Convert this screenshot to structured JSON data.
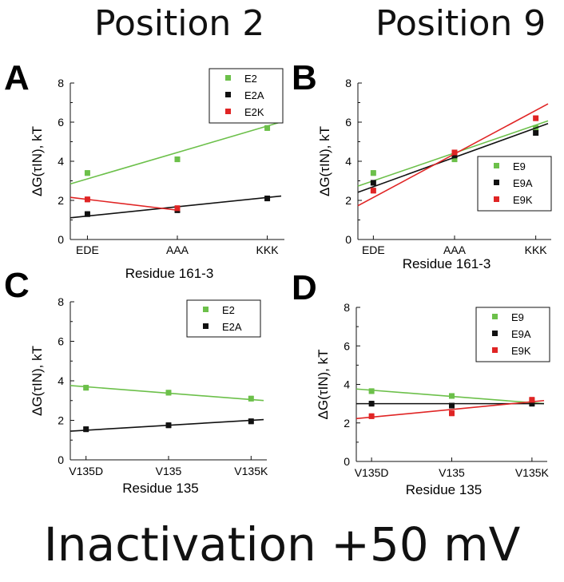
{
  "headings": {
    "left": "Position 2",
    "right": "Position 9"
  },
  "footer": "Inactivation +50 mV",
  "colors": {
    "green": "#6cc04a",
    "black": "#111111",
    "red": "#e02424"
  },
  "chart_data": [
    {
      "panel": "A",
      "type": "scatter",
      "categories": [
        "EDE",
        "AAA",
        "KKK"
      ],
      "xlabel": "Residue 161-3",
      "ylabel": "ΔG(τIN), kT",
      "ylim": [
        0,
        8
      ],
      "yticks": [
        0,
        2,
        4,
        6,
        8
      ],
      "legend": "top-right",
      "series": [
        {
          "name": "E2",
          "color": "green",
          "values": [
            3.4,
            4.1,
            5.7
          ],
          "fit": [
            3.1,
            5.8
          ]
        },
        {
          "name": "E2A",
          "color": "black",
          "values": [
            1.3,
            1.5,
            2.1
          ],
          "fit": [
            1.2,
            2.15
          ]
        },
        {
          "name": "E2K",
          "color": "red",
          "values": [
            2.05,
            1.6,
            null
          ],
          "fit": [
            2.05,
            1.5
          ],
          "fit_x": [
            0,
            1
          ]
        }
      ]
    },
    {
      "panel": "B",
      "type": "scatter",
      "categories": [
        "EDE",
        "AAA",
        "KKK"
      ],
      "xlabel": "Residue 161-3",
      "ylabel": "ΔG(τIN), kT",
      "ylim": [
        0,
        8
      ],
      "yticks": [
        0,
        2,
        4,
        6,
        8
      ],
      "legend": "bottom-right",
      "series": [
        {
          "name": "E9",
          "color": "green",
          "values": [
            3.4,
            4.1,
            5.7
          ],
          "fit": [
            3.0,
            5.85
          ]
        },
        {
          "name": "E9A",
          "color": "black",
          "values": [
            2.9,
            4.3,
            5.45
          ],
          "fit": [
            2.7,
            5.7
          ]
        },
        {
          "name": "E9K",
          "color": "red",
          "values": [
            2.5,
            4.45,
            6.2
          ],
          "fit": [
            2.15,
            6.6
          ]
        }
      ]
    },
    {
      "panel": "C",
      "type": "scatter",
      "categories": [
        "V135D",
        "V135",
        "V135K"
      ],
      "xlabel": "Residue 135",
      "ylabel": "ΔG(τIN), kT",
      "ylim": [
        0,
        8
      ],
      "yticks": [
        0,
        2,
        4,
        6,
        8
      ],
      "legend": "top-right",
      "series": [
        {
          "name": "E2",
          "color": "green",
          "values": [
            3.65,
            3.4,
            3.1
          ],
          "fit": [
            3.7,
            3.05
          ]
        },
        {
          "name": "E2A",
          "color": "black",
          "values": [
            1.55,
            1.75,
            1.95
          ],
          "fit": [
            1.5,
            2.0
          ]
        }
      ]
    },
    {
      "panel": "D",
      "type": "scatter",
      "categories": [
        "V135D",
        "V135",
        "V135K"
      ],
      "xlabel": "Residue 135",
      "ylabel": "ΔG(τIN), kT",
      "ylim": [
        0,
        8
      ],
      "yticks": [
        0,
        2,
        4,
        6,
        8
      ],
      "legend": "top-right",
      "series": [
        {
          "name": "E9",
          "color": "green",
          "values": [
            3.65,
            3.4,
            3.15
          ],
          "fit": [
            3.7,
            3.05
          ]
        },
        {
          "name": "E9A",
          "color": "black",
          "values": [
            3.0,
            2.9,
            3.0
          ],
          "fit": [
            3.0,
            3.0
          ]
        },
        {
          "name": "E9K",
          "color": "red",
          "values": [
            2.35,
            2.5,
            3.2
          ],
          "fit": [
            2.3,
            3.1
          ]
        }
      ]
    }
  ]
}
